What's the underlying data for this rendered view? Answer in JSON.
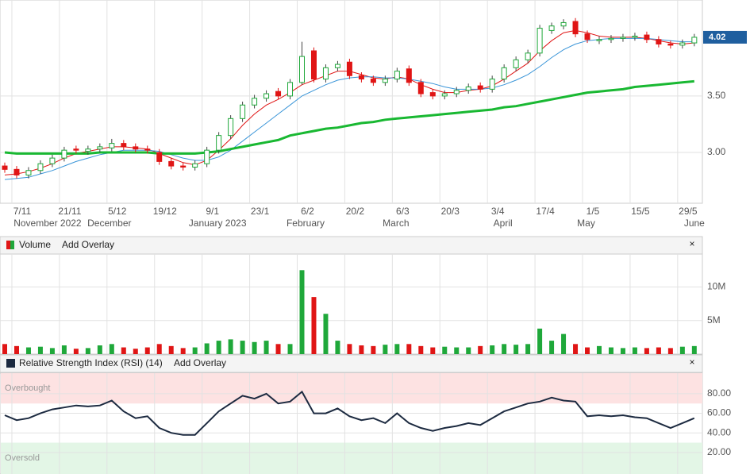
{
  "chart_data": {
    "type": "candlestick",
    "categories": [
      null,
      "7/11",
      null,
      null,
      null,
      "21/11",
      null,
      null,
      null,
      "5/12",
      null,
      null,
      null,
      "19/12",
      null,
      null,
      null,
      "9/1",
      null,
      null,
      null,
      "23/1",
      null,
      null,
      null,
      "6/2",
      null,
      null,
      null,
      "20/2",
      null,
      null,
      null,
      "6/3",
      null,
      null,
      null,
      "20/3",
      null,
      null,
      null,
      "3/4",
      null,
      null,
      null,
      "17/4",
      null,
      null,
      null,
      "1/5",
      null,
      null,
      null,
      "15/5",
      null,
      null,
      null,
      "29/5",
      null
    ],
    "month_labels": [
      {
        "value": 3.6,
        "label": "November 2022"
      },
      {
        "value": 8.8,
        "label": "December"
      },
      {
        "value": 17.9,
        "label": "January 2023"
      },
      {
        "value": 25.3,
        "label": "February"
      },
      {
        "value": 32.9,
        "label": "March"
      },
      {
        "value": 41.9,
        "label": "April"
      },
      {
        "value": 48.9,
        "label": "May"
      },
      {
        "value": 58.0,
        "label": "June"
      }
    ],
    "open": [
      2.88,
      2.85,
      2.8,
      2.84,
      2.9,
      2.95,
      3.03,
      3.01,
      3.03,
      3.04,
      3.08,
      3.05,
      3.03,
      3.0,
      2.92,
      2.88,
      2.87,
      2.9,
      3.02,
      3.15,
      3.3,
      3.42,
      3.48,
      3.54,
      3.5,
      3.62,
      3.9,
      3.65,
      3.75,
      3.8,
      3.68,
      3.65,
      3.62,
      3.65,
      3.74,
      3.62,
      3.53,
      3.5,
      3.52,
      3.55,
      3.59,
      3.56,
      3.65,
      3.75,
      3.82,
      3.88,
      4.08,
      4.12,
      4.16,
      4.05,
      3.99,
      4.0,
      4.01,
      4.02,
      4.04,
      4.0,
      3.96,
      3.95,
      3.97
    ],
    "high": [
      2.91,
      2.88,
      2.87,
      2.93,
      2.98,
      3.05,
      3.06,
      3.06,
      3.08,
      3.12,
      3.11,
      3.08,
      3.06,
      3.03,
      2.95,
      2.91,
      2.93,
      3.05,
      3.18,
      3.33,
      3.45,
      3.51,
      3.55,
      3.57,
      3.65,
      3.98,
      3.93,
      3.78,
      3.81,
      3.83,
      3.71,
      3.68,
      3.68,
      3.75,
      3.77,
      3.65,
      3.56,
      3.55,
      3.58,
      3.61,
      3.62,
      3.68,
      3.78,
      3.85,
      3.91,
      4.13,
      4.15,
      4.18,
      4.19,
      4.08,
      4.03,
      4.04,
      4.05,
      4.06,
      4.07,
      4.03,
      3.99,
      4.0,
      4.05
    ],
    "low": [
      2.82,
      2.77,
      2.77,
      2.81,
      2.87,
      2.92,
      2.99,
      2.98,
      3.0,
      3.01,
      3.02,
      3.0,
      2.99,
      2.89,
      2.85,
      2.84,
      2.84,
      2.87,
      2.99,
      3.12,
      3.27,
      3.39,
      3.45,
      3.47,
      3.47,
      3.6,
      3.62,
      3.62,
      3.72,
      3.65,
      3.62,
      3.59,
      3.59,
      3.62,
      3.59,
      3.49,
      3.47,
      3.47,
      3.49,
      3.52,
      3.53,
      3.53,
      3.62,
      3.72,
      3.79,
      3.85,
      4.05,
      4.09,
      4.02,
      3.97,
      3.96,
      3.97,
      3.98,
      3.99,
      3.97,
      3.93,
      3.92,
      3.92,
      3.94
    ],
    "close": [
      2.85,
      2.8,
      2.84,
      2.9,
      2.95,
      3.02,
      3.02,
      3.03,
      3.05,
      3.08,
      3.05,
      3.03,
      3.02,
      2.92,
      2.88,
      2.87,
      2.9,
      3.02,
      3.15,
      3.3,
      3.42,
      3.48,
      3.52,
      3.5,
      3.62,
      3.85,
      3.65,
      3.75,
      3.78,
      3.68,
      3.65,
      3.62,
      3.65,
      3.72,
      3.62,
      3.52,
      3.5,
      3.52,
      3.55,
      3.58,
      3.56,
      3.65,
      3.75,
      3.82,
      3.88,
      4.1,
      4.12,
      4.15,
      4.05,
      4.0,
      4.0,
      4.01,
      4.02,
      4.03,
      4.0,
      3.96,
      3.95,
      3.97,
      4.02
    ],
    "up_color": "#1fa83a",
    "down_color": "#e01515",
    "ylim": [
      2.55,
      4.35
    ],
    "yticks": [
      {
        "value": 3,
        "label": "3.00"
      },
      {
        "value": 3.5,
        "label": "3.50"
      }
    ],
    "last_price": {
      "value": 4.02,
      "label": "4.02"
    },
    "last_price_color": "#1f5f9f",
    "grid": true,
    "series": [
      {
        "color": "#e01515",
        "line_width": 1,
        "values": [
          2.8,
          2.81,
          2.83,
          2.86,
          2.9,
          2.95,
          2.99,
          3.01,
          3.03,
          3.05,
          3.05,
          3.04,
          3.03,
          2.99,
          2.95,
          2.91,
          2.89,
          2.93,
          3.02,
          3.12,
          3.24,
          3.34,
          3.42,
          3.47,
          3.53,
          3.6,
          3.64,
          3.68,
          3.72,
          3.72,
          3.69,
          3.66,
          3.65,
          3.67,
          3.65,
          3.6,
          3.56,
          3.53,
          3.53,
          3.55,
          3.56,
          3.59,
          3.65,
          3.72,
          3.79,
          3.9,
          3.99,
          4.06,
          4.08,
          4.06,
          4.03,
          4.02,
          4.02,
          4.02,
          4.01,
          3.99,
          3.97,
          3.96,
          3.97
        ]
      },
      {
        "color": "#3a95d8",
        "line_width": 1,
        "values": [
          2.76,
          2.77,
          2.78,
          2.81,
          2.84,
          2.88,
          2.92,
          2.95,
          2.98,
          3.0,
          3.02,
          3.02,
          3.02,
          3.01,
          2.98,
          2.95,
          2.93,
          2.93,
          2.96,
          3.02,
          3.1,
          3.18,
          3.26,
          3.34,
          3.42,
          3.5,
          3.55,
          3.6,
          3.64,
          3.66,
          3.67,
          3.67,
          3.66,
          3.66,
          3.65,
          3.63,
          3.61,
          3.58,
          3.56,
          3.56,
          3.56,
          3.57,
          3.6,
          3.64,
          3.69,
          3.76,
          3.84,
          3.91,
          3.96,
          3.99,
          4.0,
          4.01,
          4.01,
          4.01,
          4.01,
          4.0,
          3.99,
          3.98,
          3.98
        ]
      },
      {
        "color": "#19b832",
        "line_width": 3,
        "values": [
          3.0,
          2.99,
          2.99,
          2.99,
          2.99,
          2.99,
          2.99,
          2.99,
          3.0,
          3.0,
          3.0,
          3.0,
          3.0,
          2.99,
          2.99,
          2.99,
          2.99,
          3.0,
          3.01,
          3.03,
          3.05,
          3.07,
          3.09,
          3.11,
          3.15,
          3.17,
          3.19,
          3.21,
          3.22,
          3.24,
          3.26,
          3.27,
          3.29,
          3.3,
          3.31,
          3.32,
          3.33,
          3.34,
          3.35,
          3.36,
          3.37,
          3.38,
          3.4,
          3.41,
          3.43,
          3.45,
          3.47,
          3.49,
          3.51,
          3.53,
          3.54,
          3.55,
          3.56,
          3.58,
          3.59,
          3.6,
          3.61,
          3.62,
          3.63
        ]
      }
    ],
    "volume": {
      "title": "Volume",
      "overlay": "Add Overlay",
      "close": "×",
      "values": [
        1500000,
        1200000,
        1000000,
        1100000,
        900000,
        1300000,
        800000,
        900000,
        1300000,
        1500000,
        1000000,
        800000,
        1000000,
        1500000,
        1200000,
        900000,
        1000000,
        1600000,
        2000000,
        2200000,
        2000000,
        1800000,
        2000000,
        1500000,
        1500000,
        12500000,
        8500000,
        6000000,
        2000000,
        1500000,
        1300000,
        1200000,
        1400000,
        1500000,
        1500000,
        1200000,
        1000000,
        1100000,
        1000000,
        1000000,
        1200000,
        1300000,
        1500000,
        1400000,
        1500000,
        3800000,
        2000000,
        3000000,
        1500000,
        1000000,
        1200000,
        1000000,
        900000,
        1000000,
        900000,
        1000000,
        900000,
        1100000,
        1200000
      ],
      "ylim": [
        0,
        14900000
      ],
      "yticks": [
        {
          "value": 5000000,
          "label": "5M"
        },
        {
          "value": 10000000,
          "label": "10M"
        }
      ]
    },
    "rsi": {
      "title": "Relative Strength Index (RSI) (14)",
      "overlay": "Add Overlay",
      "close": "×",
      "color": "#1c2a40",
      "values": [
        58,
        53,
        55,
        60,
        64,
        66,
        68,
        67,
        68,
        73,
        62,
        55,
        57,
        45,
        40,
        38,
        38,
        50,
        62,
        70,
        78,
        75,
        80,
        70,
        72,
        82,
        60,
        60,
        65,
        57,
        53,
        55,
        50,
        60,
        50,
        45,
        42,
        45,
        47,
        50,
        48,
        55,
        62,
        66,
        70,
        72,
        76,
        73,
        72,
        57,
        58,
        57,
        58,
        56,
        55,
        50,
        45,
        50,
        55
      ],
      "ylim": [
        -2,
        101
      ],
      "yticks": [
        {
          "value": 20,
          "label": "20.00"
        },
        {
          "value": 40,
          "label": "40.00"
        },
        {
          "value": 60,
          "label": "60.00"
        },
        {
          "value": 80,
          "label": "80.00"
        }
      ],
      "overbought": {
        "value": 70,
        "label": "Overbought"
      },
      "oversold": {
        "value": 30,
        "label": "Oversold"
      }
    }
  }
}
